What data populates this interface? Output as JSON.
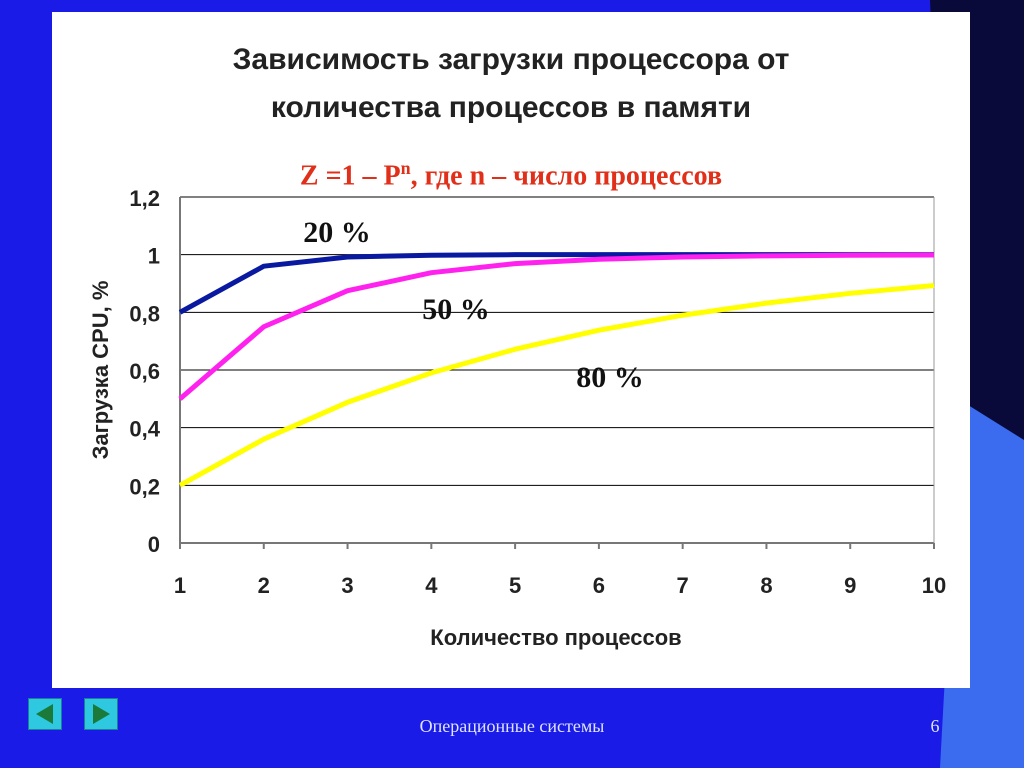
{
  "slide": {
    "title_line1": "Зависимость загрузки процессора от",
    "title_line2": "количества процессов в памяти",
    "formula_main": "Z =1 – P",
    "formula_sup": "n",
    "formula_rest": ", где n – число процессов",
    "footer": "Операционные системы",
    "page_number": "6",
    "nav_prev_icon": "arrow-left-icon",
    "nav_next_icon": "arrow-right-icon"
  },
  "chart_data": {
    "type": "line",
    "title": "Зависимость загрузки процессора от количества процессов в памяти",
    "xlabel": "Количество процессов",
    "ylabel": "Загрузка CPU, %",
    "categories": [
      "1",
      "2",
      "3",
      "4",
      "5",
      "6",
      "7",
      "8",
      "9",
      "10"
    ],
    "yticks": [
      "0",
      "0,2",
      "0,4",
      "0,6",
      "0,8",
      "1",
      "1,2"
    ],
    "ylim": [
      0,
      1.2
    ],
    "grid": true,
    "series": [
      {
        "name": "20 %",
        "color": "#0a1aa0",
        "values": [
          0.8,
          0.96,
          0.992,
          0.998,
          1.0,
          1.0,
          1.0,
          1.0,
          1.0,
          1.0
        ]
      },
      {
        "name": "50 %",
        "color": "#ff22ee",
        "values": [
          0.5,
          0.75,
          0.875,
          0.9375,
          0.969,
          0.984,
          0.992,
          0.996,
          0.998,
          0.999
        ]
      },
      {
        "name": "80 %",
        "color": "#ffff00",
        "values": [
          0.2,
          0.36,
          0.488,
          0.59,
          0.672,
          0.738,
          0.79,
          0.832,
          0.866,
          0.893
        ]
      }
    ]
  }
}
